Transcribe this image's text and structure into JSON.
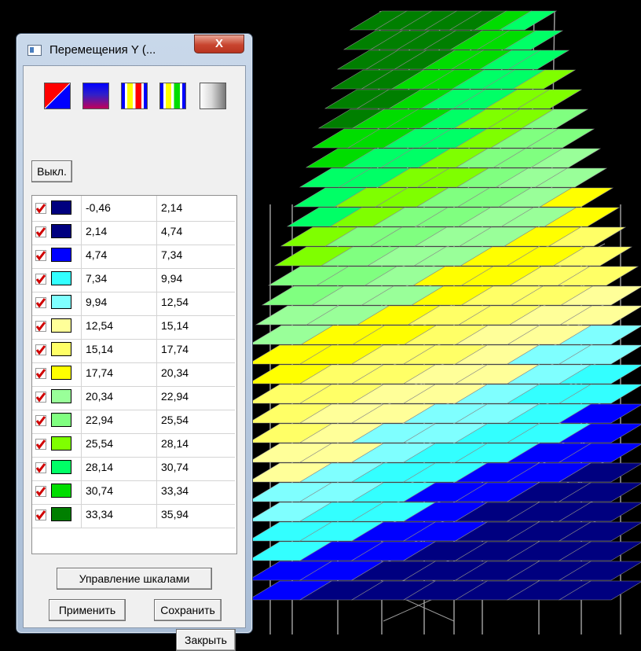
{
  "window": {
    "title": "Перемещения Y (...",
    "close_label": "X"
  },
  "palette_buttons": [
    {
      "name": "red-blue-diagonal-icon"
    },
    {
      "name": "blue-magenta-gradient-icon"
    },
    {
      "name": "red-yellow-stripes-icon"
    },
    {
      "name": "green-yellow-stripes-icon"
    },
    {
      "name": "gray-gradient-icon"
    }
  ],
  "off_button": "Выкл.",
  "scale": {
    "rows": [
      {
        "from": "-0,46",
        "to": "2,14",
        "color": "#00007f",
        "checked": true
      },
      {
        "from": "2,14",
        "to": "4,74",
        "color": "#000080",
        "checked": true
      },
      {
        "from": "4,74",
        "to": "7,34",
        "color": "#0000ff",
        "checked": true
      },
      {
        "from": "7,34",
        "to": "9,94",
        "color": "#33ffff",
        "checked": true
      },
      {
        "from": "9,94",
        "to": "12,54",
        "color": "#7fffff",
        "checked": true
      },
      {
        "from": "12,54",
        "to": "15,14",
        "color": "#ffff99",
        "checked": true
      },
      {
        "from": "15,14",
        "to": "17,74",
        "color": "#ffff66",
        "checked": true
      },
      {
        "from": "17,74",
        "to": "20,34",
        "color": "#ffff00",
        "checked": true
      },
      {
        "from": "20,34",
        "to": "22,94",
        "color": "#99ff99",
        "checked": true
      },
      {
        "from": "22,94",
        "to": "25,54",
        "color": "#80ff80",
        "checked": true
      },
      {
        "from": "25,54",
        "to": "28,14",
        "color": "#7fff00",
        "checked": true
      },
      {
        "from": "28,14",
        "to": "30,74",
        "color": "#00ff66",
        "checked": true
      },
      {
        "from": "30,74",
        "to": "33,34",
        "color": "#00dd00",
        "checked": true
      },
      {
        "from": "33,34",
        "to": "35,94",
        "color": "#007f00",
        "checked": true
      }
    ]
  },
  "buttons": {
    "manage_scales": "Управление шкалами",
    "apply": "Применить",
    "save": "Сохранить",
    "close": "Закрыть"
  }
}
